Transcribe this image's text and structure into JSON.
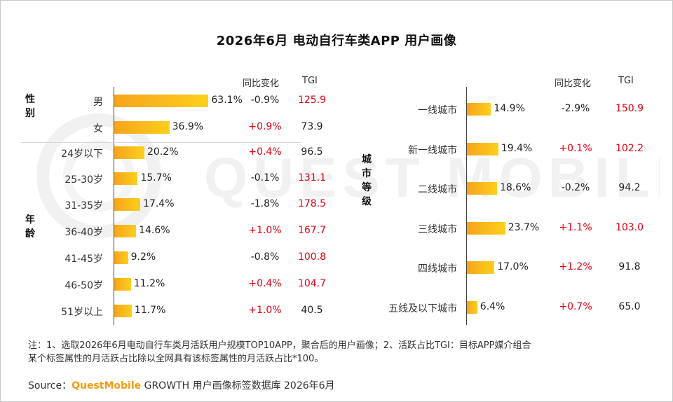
{
  "title": "2026年6月 电动自行车类APP 用户画像",
  "watermark_text": "QUEST MOBILE",
  "chart_data": [
    {
      "type": "bar",
      "orientation": "horizontal",
      "column_headers": {
        "yoy": "同比变化",
        "tgi": "TGI"
      },
      "groups": [
        {
          "label": "性别",
          "categories": [
            "男",
            "女"
          ],
          "values": [
            63.1,
            36.9
          ],
          "value_labels": [
            "63.1%",
            "36.9%"
          ],
          "yoy": [
            "-0.9%",
            "+0.9%"
          ],
          "tgi": [
            "125.9",
            "73.9"
          ]
        },
        {
          "label": "年龄",
          "categories": [
            "24岁以下",
            "25-30岁",
            "31-35岁",
            "36-40岁",
            "41-45岁",
            "46-50岁",
            "51岁以上"
          ],
          "values": [
            20.2,
            15.7,
            17.4,
            14.6,
            9.2,
            11.2,
            11.7
          ],
          "value_labels": [
            "20.2%",
            "15.7%",
            "17.4%",
            "14.6%",
            "9.2%",
            "11.2%",
            "11.7%"
          ],
          "yoy": [
            "+0.4%",
            "-0.1%",
            "-1.8%",
            "+1.0%",
            "-0.8%",
            "+0.4%",
            "+1.0%"
          ],
          "tgi": [
            "96.5",
            "131.1",
            "178.5",
            "167.7",
            "100.8",
            "104.7",
            "40.5"
          ]
        }
      ],
      "xlim": [
        0,
        70
      ]
    },
    {
      "type": "bar",
      "orientation": "horizontal",
      "column_headers": {
        "yoy": "同比变化",
        "tgi": "TGI"
      },
      "groups": [
        {
          "label": "城市等级",
          "categories": [
            "一线城市",
            "新一线城市",
            "二线城市",
            "三线城市",
            "四线城市",
            "五线及以下城市"
          ],
          "values": [
            14.9,
            19.4,
            18.6,
            23.7,
            17.0,
            6.4
          ],
          "value_labels": [
            "14.9%",
            "19.4%",
            "18.6%",
            "23.7%",
            "17.0%",
            "6.4%"
          ],
          "yoy": [
            "-2.9%",
            "+0.1%",
            "-0.2%",
            "+1.1%",
            "+1.2%",
            "+0.7%"
          ],
          "tgi": [
            "150.9",
            "102.2",
            "94.2",
            "103.0",
            "91.8",
            "65.0"
          ]
        }
      ],
      "xlim": [
        0,
        70
      ]
    }
  ],
  "colors": {
    "bar_start": "#f7a41d",
    "bar_end": "#fccf1b",
    "positive": "#e60012",
    "tgi_high": "#e60012",
    "brand": "#f39c12"
  },
  "note": {
    "line1": "注：1、选取2026年6月电动自行车类月活跃用户规模TOP10APP，聚合后的用户画像；2、活跃占比TGI：目标APP媒介组合",
    "line2": "某个标签属性的月活跃占比除以全网具有该标签属性的月活跃占比*100。"
  },
  "source": {
    "prefix": "Source：",
    "brand": "QuestMobile",
    "suffix": " GROWTH 用户画像标签数据库 2026年6月"
  }
}
